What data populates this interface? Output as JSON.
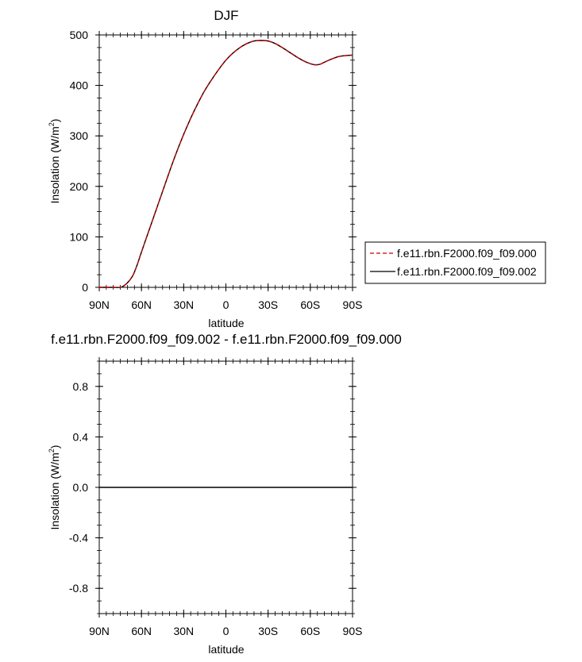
{
  "chart_data": [
    {
      "type": "line",
      "title": "DJF",
      "xlabel": "latitude",
      "ylabel": "Insolation (W/m",
      "ylabel_sup": "2",
      "ylabel_close": ")",
      "xlim": [
        90,
        -90
      ],
      "ylim": [
        0,
        500
      ],
      "x_ticks": [
        90,
        60,
        30,
        0,
        -30,
        -60,
        -90
      ],
      "x_tick_labels": [
        "90N",
        "60N",
        "30N",
        "0",
        "30S",
        "60S",
        "90S"
      ],
      "y_ticks": [
        0,
        100,
        200,
        300,
        400,
        500
      ],
      "y_tick_labels": [
        "0",
        "100",
        "200",
        "300",
        "400",
        "500"
      ],
      "legend_position": "right-bottom",
      "series": [
        {
          "name": "f.e11.rbn.F2000.f09_f09.000",
          "color": "#cc0000",
          "dash": true,
          "x": [
            90,
            85,
            80,
            75,
            72,
            69,
            66,
            63,
            60,
            55,
            50,
            45,
            40,
            35,
            30,
            25,
            20,
            15,
            10,
            5,
            0,
            -5,
            -10,
            -15,
            -20,
            -25,
            -30,
            -35,
            -40,
            -45,
            -50,
            -55,
            -60,
            -63,
            -65,
            -67,
            -70,
            -75,
            -80,
            -85,
            -90
          ],
          "y": [
            0,
            0,
            0,
            0,
            4,
            12,
            24,
            45,
            70,
            110,
            150,
            190,
            230,
            268,
            303,
            335,
            364,
            390,
            412,
            432,
            450,
            464,
            475,
            483,
            488,
            489,
            488,
            483,
            475,
            466,
            457,
            449,
            443,
            441,
            441,
            442,
            446,
            452,
            457,
            459,
            460
          ]
        },
        {
          "name": "f.e11.rbn.F2000.f09_f09.002",
          "color": "#000000",
          "dash": false,
          "x": [
            90,
            85,
            80,
            75,
            72,
            69,
            66,
            63,
            60,
            55,
            50,
            45,
            40,
            35,
            30,
            25,
            20,
            15,
            10,
            5,
            0,
            -5,
            -10,
            -15,
            -20,
            -25,
            -30,
            -35,
            -40,
            -45,
            -50,
            -55,
            -60,
            -63,
            -65,
            -67,
            -70,
            -75,
            -80,
            -85,
            -90
          ],
          "y": [
            0,
            0,
            0,
            0,
            4,
            12,
            24,
            45,
            70,
            110,
            150,
            190,
            230,
            268,
            303,
            335,
            364,
            390,
            412,
            432,
            450,
            464,
            475,
            483,
            488,
            489,
            488,
            483,
            475,
            466,
            457,
            449,
            443,
            441,
            441,
            442,
            446,
            452,
            457,
            459,
            460
          ]
        }
      ]
    },
    {
      "type": "line",
      "title": "f.e11.rbn.F2000.f09_f09.002 - f.e11.rbn.F2000.f09_f09.000",
      "xlabel": "latitude",
      "ylabel": "Insolation (W/m",
      "ylabel_sup": "2",
      "ylabel_close": ")",
      "xlim": [
        90,
        -90
      ],
      "ylim": [
        -1,
        1
      ],
      "x_ticks": [
        90,
        60,
        30,
        0,
        -30,
        -60,
        -90
      ],
      "x_tick_labels": [
        "90N",
        "60N",
        "30N",
        "0",
        "30S",
        "60S",
        "90S"
      ],
      "y_ticks": [
        -0.8,
        -0.4,
        0.0,
        0.4,
        0.8
      ],
      "y_tick_labels": [
        "-0.8",
        "-0.4",
        "0.0",
        "0.4",
        "0.8"
      ],
      "series": [
        {
          "color": "#000000",
          "dash": false,
          "x": [
            90,
            -90
          ],
          "y": [
            0,
            0
          ]
        }
      ]
    }
  ]
}
